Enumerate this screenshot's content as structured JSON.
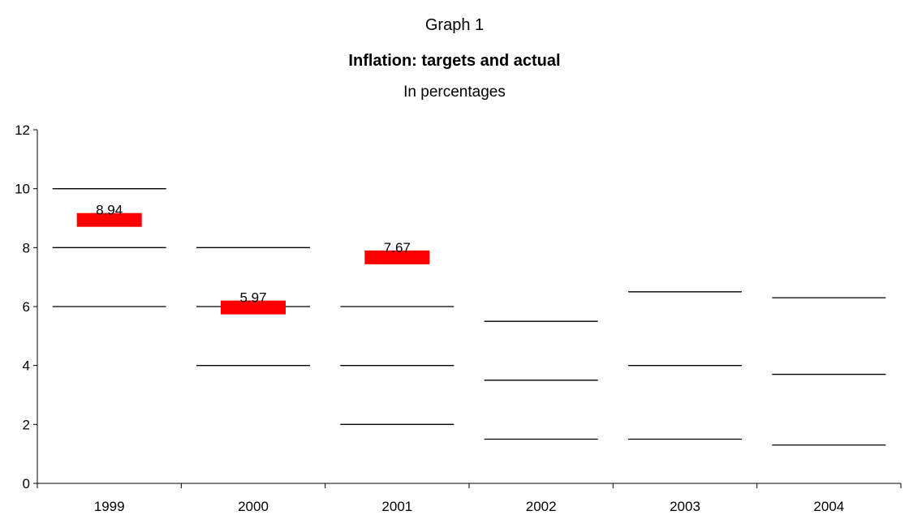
{
  "header": {
    "graph_label": "Graph 1",
    "title": "Inflation: targets and actual",
    "subtitle": "In percentages"
  },
  "chart_data": {
    "type": "bar",
    "categories": [
      "1999",
      "2000",
      "2001",
      "2002",
      "2003",
      "2004"
    ],
    "ylim": [
      0,
      12
    ],
    "yticks": [
      0,
      2,
      4,
      6,
      8,
      10,
      12
    ],
    "grid": false,
    "legend": "none",
    "target_lines": [
      [
        6,
        8,
        10
      ],
      [
        4,
        6,
        8
      ],
      [
        2,
        4,
        6
      ],
      [
        1.5,
        3.5,
        5.5
      ],
      [
        1.5,
        4,
        6.5
      ],
      [
        1.3,
        3.7,
        6.3
      ]
    ],
    "actual": [
      {
        "category": "1999",
        "value": 8.94,
        "label": "8.94"
      },
      {
        "category": "2000",
        "value": 5.97,
        "label": "5.97"
      },
      {
        "category": "2001",
        "value": 7.67,
        "label": "7.67"
      }
    ],
    "colors": {
      "actual_marker": "#ff0000",
      "target_line": "#000000",
      "axis": "#000000"
    }
  }
}
